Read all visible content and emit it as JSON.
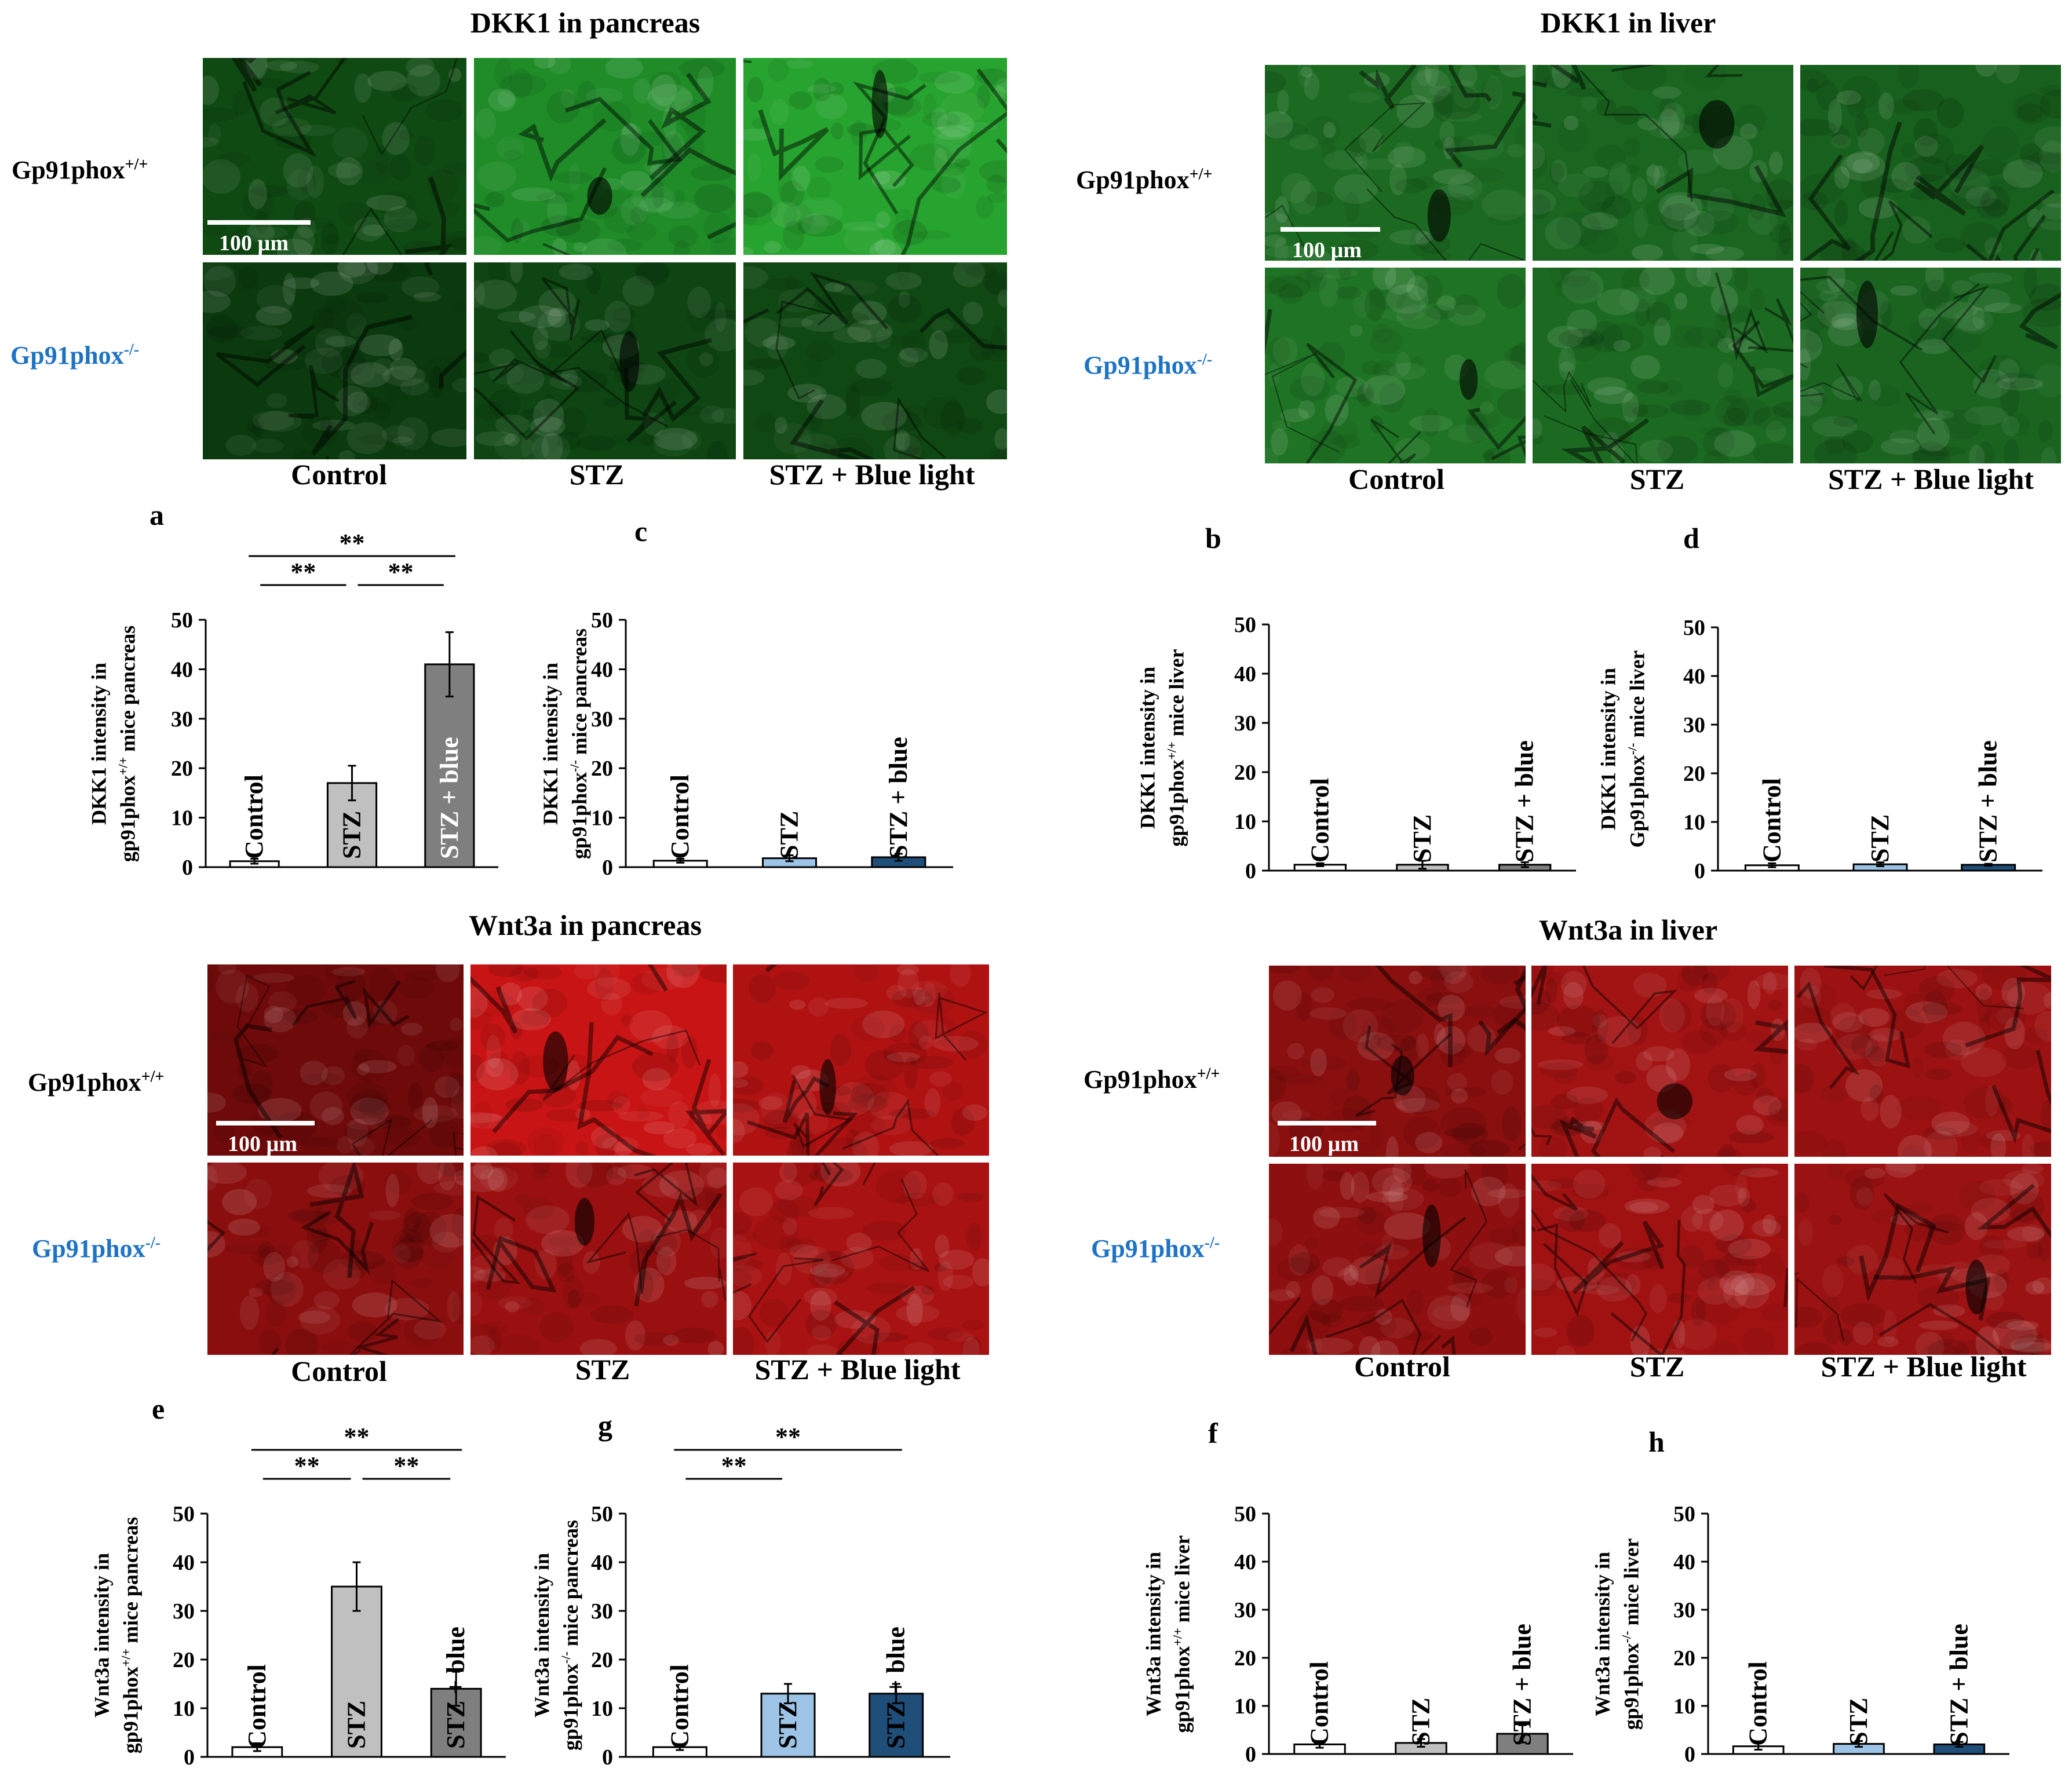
{
  "sections": {
    "dkk1_pancreas": {
      "title": "DKK1 in pancreas",
      "row_labels": [
        "Gp91phox+/+",
        "Gp91phox-/-"
      ],
      "col_labels": [
        "Control",
        "STZ",
        "STZ + Blue light"
      ],
      "scale_bar": "100 µm",
      "tile_colors": [
        [
          "#0f4a12",
          "#1f8c28",
          "#27a32f"
        ],
        [
          "#0b3a0e",
          "#0e4512",
          "#104813"
        ]
      ]
    },
    "dkk1_liver": {
      "title": "DKK1 in liver",
      "row_labels": [
        "Gp91phox+/+",
        "Gp91phox-/-"
      ],
      "col_labels": [
        "Control",
        "STZ",
        "STZ + Blue light"
      ],
      "scale_bar": "100 µm",
      "tile_colors": [
        [
          "#1c6a21",
          "#1a6620",
          "#18601d"
        ],
        [
          "#1f7324",
          "#1c6a21",
          "#1a6420"
        ]
      ]
    },
    "wnt3a_pancreas": {
      "title": "Wnt3a in pancreas",
      "row_labels": [
        "Gp91phox+/+",
        "Gp91phox-/-"
      ],
      "col_labels": [
        "Control",
        "STZ",
        "STZ + Blue light"
      ],
      "scale_bar": "100 µm",
      "tile_colors": [
        [
          "#6e0a0a",
          "#c81414",
          "#b01212"
        ],
        [
          "#8a0e0e",
          "#9a1010",
          "#a81212"
        ]
      ]
    },
    "wnt3a_liver": {
      "title": "Wnt3a in liver",
      "row_labels": [
        "Gp91phox+/+",
        "Gp91phox-/-"
      ],
      "col_labels": [
        "Control",
        "STZ",
        "STZ + Blue light"
      ],
      "scale_bar": "100 µm",
      "tile_colors": [
        [
          "#8a0f0f",
          "#a21313",
          "#9c1212"
        ],
        [
          "#8e0f0f",
          "#a01212",
          "#9a1212"
        ]
      ]
    }
  },
  "colors": {
    "control_bar": "#ffffff",
    "wt_stz": "#c0c0c0",
    "wt_stz_blue": "#7f7f7f",
    "ko_stz": "#9dc3e6",
    "ko_stz_blue": "#1f4e79",
    "ko_label": "#1f73c4"
  },
  "chart_data": [
    {
      "panel": "a",
      "type": "bar",
      "ylabel_line1": "DKK1 intensity in",
      "ylabel_line2": "gp91phox+/+ mice pancreas",
      "categories": [
        "Control",
        "STZ",
        "STZ + blue"
      ],
      "values": [
        1.2,
        17,
        41
      ],
      "errors": [
        0.5,
        3.5,
        6.5
      ],
      "ylim": [
        0,
        50
      ],
      "yticks": [
        0,
        10,
        20,
        30,
        40,
        50
      ],
      "bar_colors": [
        "#ffffff",
        "#c0c0c0",
        "#7f7f7f"
      ],
      "label_colors": [
        "#000000",
        "#000000",
        "#ffffff"
      ],
      "significance": [
        {
          "from": 0,
          "to": 1,
          "label": "**"
        },
        {
          "from": 1,
          "to": 2,
          "label": "**"
        },
        {
          "from": 0,
          "to": 2,
          "label": "**"
        }
      ]
    },
    {
      "panel": "c",
      "type": "bar",
      "ylabel_line1": "DKK1 intensity in",
      "ylabel_line2": "gp91phox-/- mice pancreas",
      "categories": [
        "Control",
        "STZ",
        "STZ + blue"
      ],
      "values": [
        1.3,
        1.8,
        2.0
      ],
      "errors": [
        0.4,
        0.6,
        0.7
      ],
      "ylim": [
        0,
        50
      ],
      "yticks": [
        0,
        10,
        20,
        30,
        40,
        50
      ],
      "bar_colors": [
        "#ffffff",
        "#9dc3e6",
        "#1f4e79"
      ],
      "label_colors": [
        "#000000",
        "#000000",
        "#000000"
      ],
      "significance": []
    },
    {
      "panel": "b",
      "type": "bar",
      "ylabel_line1": "DKK1 intensity in",
      "ylabel_line2": "gp91phox+/+ mice liver",
      "categories": [
        "Control",
        "STZ",
        "STZ + blue"
      ],
      "values": [
        1.2,
        1.2,
        1.2
      ],
      "errors": [
        0.3,
        0.8,
        0.5
      ],
      "ylim": [
        0,
        50
      ],
      "yticks": [
        0,
        10,
        20,
        30,
        40,
        50
      ],
      "bar_colors": [
        "#ffffff",
        "#c0c0c0",
        "#7f7f7f"
      ],
      "label_colors": [
        "#000000",
        "#000000",
        "#000000"
      ],
      "significance": []
    },
    {
      "panel": "d",
      "type": "bar",
      "ylabel_line1": "DKK1 intensity in",
      "ylabel_line2": "Gp91phox-/- mice liver",
      "categories": [
        "Control",
        "STZ",
        "STZ + blue"
      ],
      "values": [
        1.1,
        1.3,
        1.2
      ],
      "errors": [
        0.4,
        0.4,
        0.2
      ],
      "ylim": [
        0,
        50
      ],
      "yticks": [
        0,
        10,
        20,
        30,
        40,
        50
      ],
      "bar_colors": [
        "#ffffff",
        "#9dc3e6",
        "#1f4e79"
      ],
      "label_colors": [
        "#000000",
        "#000000",
        "#000000"
      ],
      "significance": []
    },
    {
      "panel": "e",
      "type": "bar",
      "ylabel_line1": "Wnt3a intensity in",
      "ylabel_line2": "gp91phox+/+ mice pancreas",
      "categories": [
        "Control",
        "STZ",
        "STZ + blue"
      ],
      "values": [
        2.0,
        35,
        14
      ],
      "errors": [
        0.8,
        5,
        3.5
      ],
      "ylim": [
        0,
        50
      ],
      "yticks": [
        0,
        10,
        20,
        30,
        40,
        50
      ],
      "bar_colors": [
        "#ffffff",
        "#c0c0c0",
        "#7f7f7f"
      ],
      "label_colors": [
        "#000000",
        "#000000",
        "#000000"
      ],
      "significance": [
        {
          "from": 0,
          "to": 1,
          "label": "**"
        },
        {
          "from": 1,
          "to": 2,
          "label": "**"
        },
        {
          "from": 0,
          "to": 2,
          "label": "**"
        }
      ]
    },
    {
      "panel": "g",
      "type": "bar",
      "ylabel_line1": "Wnt3a intensity in",
      "ylabel_line2": "gp91phox-/- mice pancreas",
      "categories": [
        "Control",
        "STZ",
        "STZ + blue"
      ],
      "values": [
        2.0,
        13,
        13
      ],
      "errors": [
        0.6,
        2,
        2
      ],
      "ylim": [
        0,
        50
      ],
      "yticks": [
        0,
        10,
        20,
        30,
        40,
        50
      ],
      "bar_colors": [
        "#ffffff",
        "#9dc3e6",
        "#1f4e79"
      ],
      "label_colors": [
        "#000000",
        "#000000",
        "#000000"
      ],
      "significance": [
        {
          "from": 0,
          "to": 1,
          "label": "**"
        },
        {
          "from": 0,
          "to": 2,
          "label": "**"
        }
      ]
    },
    {
      "panel": "f",
      "type": "bar",
      "ylabel_line1": "Wnt3a intensity in",
      "ylabel_line2": "gp91phox+/+ mice liver",
      "categories": [
        "Control",
        "STZ",
        "STZ + blue"
      ],
      "values": [
        2.0,
        2.3,
        4.2
      ],
      "errors": [
        0.7,
        0.8,
        1.8
      ],
      "ylim": [
        0,
        50
      ],
      "yticks": [
        0,
        10,
        20,
        30,
        40,
        50
      ],
      "bar_colors": [
        "#ffffff",
        "#c0c0c0",
        "#7f7f7f"
      ],
      "label_colors": [
        "#000000",
        "#000000",
        "#000000"
      ],
      "significance": []
    },
    {
      "panel": "h",
      "type": "bar",
      "ylabel_line1": "Wnt3a intensity in",
      "ylabel_line2": "gp91phox-/- mice liver",
      "categories": [
        "Control",
        "STZ",
        "STZ + blue"
      ],
      "values": [
        1.6,
        2.1,
        2.0
      ],
      "errors": [
        0.7,
        0.6,
        0.5
      ],
      "ylim": [
        0,
        50
      ],
      "yticks": [
        0,
        10,
        20,
        30,
        40,
        50
      ],
      "bar_colors": [
        "#ffffff",
        "#9dc3e6",
        "#1f4e79"
      ],
      "label_colors": [
        "#000000",
        "#000000",
        "#000000"
      ],
      "significance": []
    }
  ]
}
